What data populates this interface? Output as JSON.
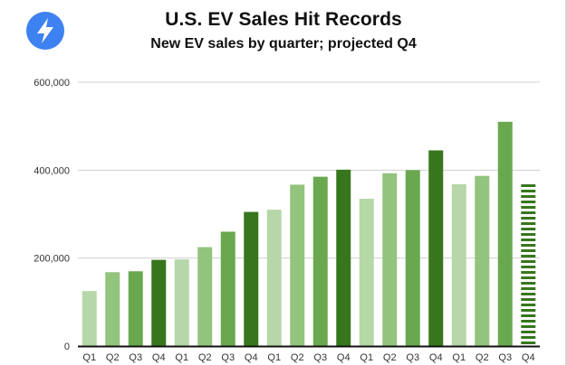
{
  "header": {
    "title": "U.S. EV Sales Hit Records",
    "subtitle": "New EV sales by quarter; projected Q4",
    "logo_icon": "lightning-bolt-icon",
    "logo_color": "#3d82f0"
  },
  "chart_data": {
    "type": "bar",
    "title": "U.S. EV Sales Hit Records",
    "subtitle": "New EV sales by quarter; projected Q4",
    "xlabel": "",
    "ylabel": "",
    "ylim": [
      0,
      600000
    ],
    "yticks": [
      0,
      200000,
      400000,
      600000
    ],
    "ytick_labels": [
      "0",
      "200,000",
      "400,000",
      "600,000"
    ],
    "grid": true,
    "categories": [
      "Q1",
      "Q2",
      "Q3",
      "Q4",
      "Q1",
      "Q2",
      "Q3",
      "Q4",
      "Q1",
      "Q2",
      "Q3",
      "Q4",
      "Q1",
      "Q2",
      "Q3",
      "Q4",
      "Q1",
      "Q2",
      "Q3",
      "Q4"
    ],
    "values": [
      125000,
      168000,
      170000,
      196000,
      197000,
      225000,
      260000,
      305000,
      310000,
      367000,
      385000,
      401000,
      335000,
      393000,
      400000,
      445000,
      368000,
      387000,
      510000,
      372000
    ],
    "quarter_shade": [
      "q1",
      "q2",
      "q3",
      "q4",
      "q1",
      "q2",
      "q3",
      "q4",
      "q1",
      "q2",
      "q3",
      "q4",
      "q1",
      "q2",
      "q3",
      "q4",
      "q1",
      "q2",
      "q3",
      "q4"
    ],
    "projected": [
      false,
      false,
      false,
      false,
      false,
      false,
      false,
      false,
      false,
      false,
      false,
      false,
      false,
      false,
      false,
      false,
      false,
      false,
      false,
      true
    ],
    "colors": {
      "q1": "#b6d7a8",
      "q2": "#93c47d",
      "q3": "#6aa84f",
      "q4": "#38761d",
      "projected": "#38761d",
      "grid": "#d0d0d0",
      "axis": "#111111"
    }
  }
}
